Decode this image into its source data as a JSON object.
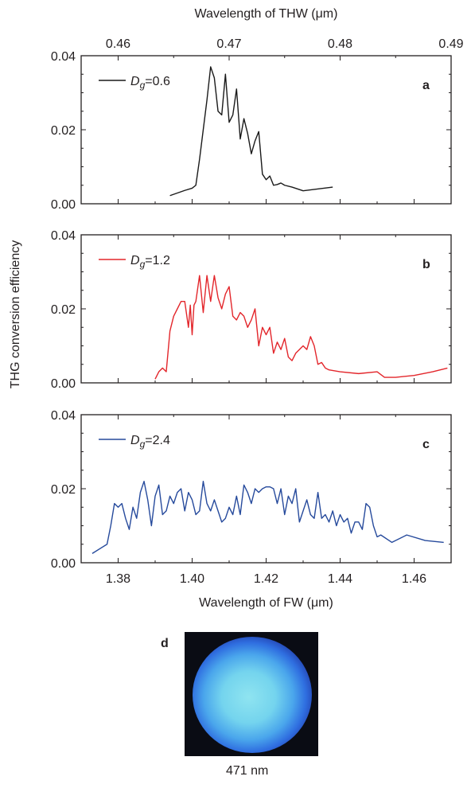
{
  "chart_data": {
    "type": "line",
    "shared": {
      "ylabel": "THG conversion efficiency",
      "xlabel_bottom": "Wavelength of FW (μm)",
      "xlabel_top": "Wavelength of THW (μm)",
      "xlim_fw": [
        1.37,
        1.47
      ],
      "xticks_fw": [
        1.38,
        1.4,
        1.42,
        1.44,
        1.46
      ],
      "xtick_labels_fw": [
        "1.38",
        "1.40",
        "1.42",
        "1.44",
        "1.46"
      ],
      "xticks_thw": [
        0.46,
        0.47,
        0.48,
        0.49
      ],
      "xtick_labels_thw": [
        "0.46",
        "0.47",
        "0.48",
        "0.49"
      ],
      "ylim": [
        0,
        0.04
      ],
      "yticks": [
        0,
        0.02,
        0.04
      ],
      "ytick_labels": [
        "0.00",
        "0.02",
        "0.04"
      ]
    },
    "panels": [
      {
        "label": "a",
        "legend_var": "D",
        "legend_sub": "g",
        "legend_value": "=0.6",
        "color": "#1a1a1a",
        "x": [
          1.394,
          1.398,
          1.4,
          1.401,
          1.402,
          1.403,
          1.404,
          1.405,
          1.406,
          1.407,
          1.408,
          1.409,
          1.41,
          1.411,
          1.412,
          1.413,
          1.414,
          1.415,
          1.416,
          1.417,
          1.418,
          1.419,
          1.42,
          1.421,
          1.422,
          1.423,
          1.424,
          1.425,
          1.427,
          1.43,
          1.438
        ],
        "y": [
          0.0022,
          0.0036,
          0.0042,
          0.005,
          0.012,
          0.02,
          0.028,
          0.037,
          0.034,
          0.025,
          0.024,
          0.035,
          0.022,
          0.024,
          0.031,
          0.0175,
          0.023,
          0.019,
          0.0135,
          0.017,
          0.0195,
          0.008,
          0.0065,
          0.0075,
          0.005,
          0.0052,
          0.0056,
          0.005,
          0.0045,
          0.0035,
          0.0045
        ]
      },
      {
        "label": "b",
        "legend_var": "D",
        "legend_sub": "g",
        "legend_value": "=1.2",
        "color": "#e3262b",
        "x": [
          1.39,
          1.391,
          1.392,
          1.393,
          1.394,
          1.395,
          1.396,
          1.397,
          1.398,
          1.399,
          1.3995,
          1.4,
          1.4005,
          1.401,
          1.402,
          1.403,
          1.404,
          1.405,
          1.406,
          1.407,
          1.408,
          1.409,
          1.41,
          1.411,
          1.412,
          1.413,
          1.414,
          1.415,
          1.416,
          1.417,
          1.418,
          1.419,
          1.42,
          1.421,
          1.422,
          1.423,
          1.424,
          1.425,
          1.426,
          1.427,
          1.428,
          1.429,
          1.43,
          1.431,
          1.432,
          1.433,
          1.434,
          1.435,
          1.436,
          1.437,
          1.44,
          1.445,
          1.45,
          1.452,
          1.455,
          1.46,
          1.465,
          1.469
        ],
        "y": [
          0.001,
          0.003,
          0.004,
          0.003,
          0.014,
          0.018,
          0.02,
          0.022,
          0.022,
          0.015,
          0.021,
          0.013,
          0.021,
          0.022,
          0.029,
          0.019,
          0.029,
          0.022,
          0.029,
          0.023,
          0.02,
          0.024,
          0.026,
          0.018,
          0.017,
          0.019,
          0.018,
          0.015,
          0.017,
          0.02,
          0.01,
          0.015,
          0.013,
          0.015,
          0.008,
          0.011,
          0.009,
          0.012,
          0.007,
          0.006,
          0.008,
          0.009,
          0.01,
          0.009,
          0.0125,
          0.01,
          0.005,
          0.0055,
          0.004,
          0.0035,
          0.003,
          0.0025,
          0.003,
          0.0015,
          0.0015,
          0.002,
          0.003,
          0.004
        ]
      },
      {
        "label": "c",
        "legend_var": "D",
        "legend_sub": "g",
        "legend_value": "=2.4",
        "color": "#264a9c",
        "x": [
          1.373,
          1.377,
          1.378,
          1.379,
          1.38,
          1.381,
          1.382,
          1.383,
          1.384,
          1.385,
          1.386,
          1.387,
          1.388,
          1.389,
          1.39,
          1.391,
          1.392,
          1.393,
          1.394,
          1.395,
          1.396,
          1.397,
          1.398,
          1.399,
          1.4,
          1.401,
          1.402,
          1.403,
          1.404,
          1.405,
          1.406,
          1.407,
          1.408,
          1.409,
          1.41,
          1.411,
          1.412,
          1.413,
          1.414,
          1.415,
          1.416,
          1.417,
          1.418,
          1.419,
          1.42,
          1.421,
          1.422,
          1.423,
          1.424,
          1.425,
          1.426,
          1.427,
          1.428,
          1.429,
          1.43,
          1.431,
          1.432,
          1.433,
          1.434,
          1.435,
          1.436,
          1.437,
          1.438,
          1.439,
          1.44,
          1.441,
          1.442,
          1.443,
          1.444,
          1.445,
          1.446,
          1.447,
          1.448,
          1.449,
          1.45,
          1.451,
          1.454,
          1.458,
          1.463,
          1.468
        ],
        "y": [
          0.0025,
          0.005,
          0.01,
          0.016,
          0.015,
          0.016,
          0.012,
          0.009,
          0.015,
          0.012,
          0.019,
          0.022,
          0.017,
          0.01,
          0.018,
          0.021,
          0.013,
          0.014,
          0.018,
          0.016,
          0.019,
          0.02,
          0.014,
          0.019,
          0.017,
          0.013,
          0.014,
          0.022,
          0.016,
          0.014,
          0.017,
          0.014,
          0.011,
          0.012,
          0.015,
          0.013,
          0.018,
          0.013,
          0.021,
          0.019,
          0.016,
          0.02,
          0.019,
          0.02,
          0.0205,
          0.0205,
          0.02,
          0.016,
          0.02,
          0.013,
          0.018,
          0.016,
          0.02,
          0.011,
          0.014,
          0.017,
          0.013,
          0.012,
          0.019,
          0.012,
          0.013,
          0.011,
          0.014,
          0.01,
          0.013,
          0.011,
          0.012,
          0.008,
          0.011,
          0.011,
          0.009,
          0.016,
          0.015,
          0.01,
          0.007,
          0.0075,
          0.0055,
          0.0075,
          0.006,
          0.0055
        ]
      }
    ]
  },
  "inset": {
    "label": "d",
    "caption": "471 nm"
  }
}
